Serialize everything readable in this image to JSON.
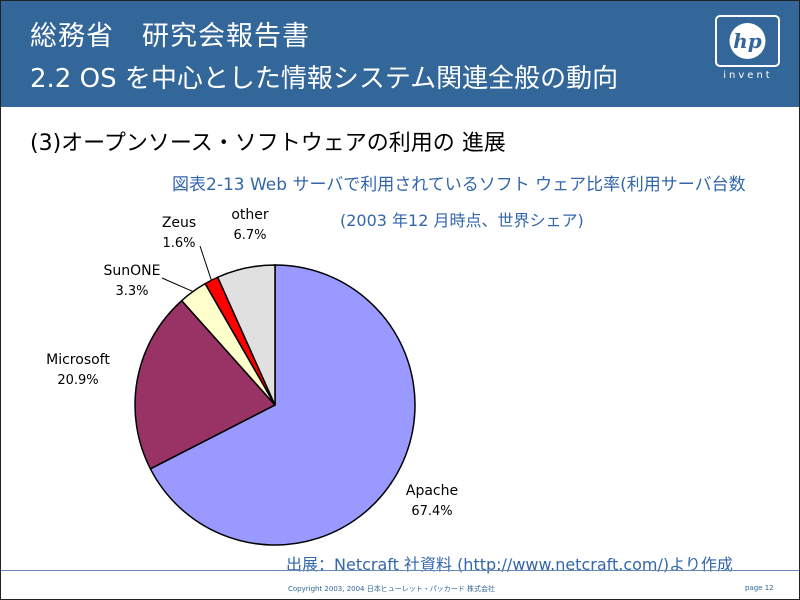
{
  "header": {
    "title_line1": "総務省　研究会報告書",
    "title_line2": "2.2 OS を中心とした情報システム関連全般の動向",
    "logo_text": "hp",
    "logo_tagline": "invent"
  },
  "section_heading": "(3)オープンソース・ソフトウェアの利用の 進展",
  "footer": {
    "source": "出展：Netcraft 社資料 (http://www.netcraft.com/)より作成",
    "copyright": "Copyright 2003, 2004  日本ヒューレット・パッカード 株式会社",
    "page": "page 12"
  },
  "colors": {
    "header_bg": "#336699",
    "title_text": "#3366aa"
  },
  "chart_data": {
    "type": "pie",
    "title": "図表2-13 Web サーバで利用されているソフト ウェア比率(利用サーバ台数",
    "subtitle": "(2003 年12 月時点、世界シェア)",
    "categories": [
      "Apache",
      "Microsoft",
      "SunONE",
      "Zeus",
      "other"
    ],
    "values": [
      67.4,
      20.9,
      3.3,
      1.6,
      6.7
    ],
    "value_labels": [
      "67.4%",
      "20.9%",
      "3.3%",
      "1.6%",
      "6.7%"
    ],
    "colors": [
      "#9999ff",
      "#993366",
      "#ffffcc",
      "#ff0000",
      "#e0e0e0"
    ]
  }
}
